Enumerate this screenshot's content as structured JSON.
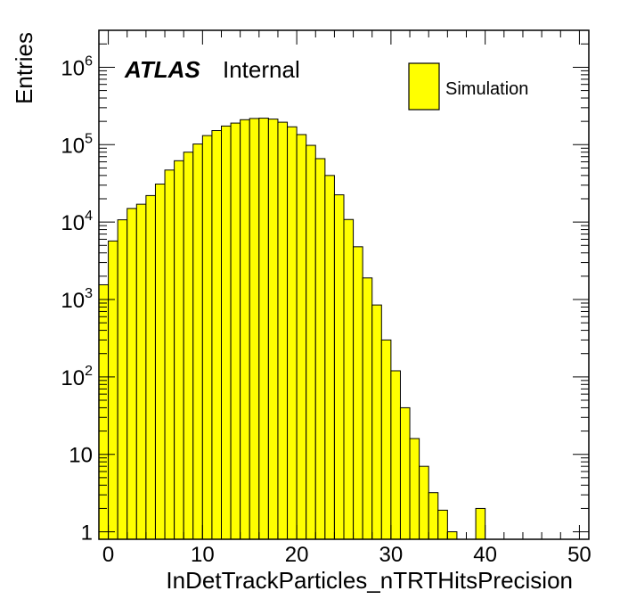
{
  "chart_data": {
    "type": "histogram",
    "x": [
      -1,
      0,
      1,
      2,
      3,
      4,
      5,
      6,
      7,
      8,
      9,
      10,
      11,
      12,
      13,
      14,
      15,
      16,
      17,
      18,
      19,
      20,
      21,
      22,
      23,
      24,
      25,
      26,
      27,
      28,
      29,
      30,
      31,
      32,
      33,
      34,
      35,
      36,
      37,
      38,
      39,
      40,
      41,
      42,
      43,
      44,
      45,
      46,
      47,
      48,
      49,
      50
    ],
    "series": [
      {
        "name": "Simulation",
        "values": [
          1550,
          5700,
          10700,
          15000,
          17000,
          22000,
          31000,
          47000,
          62000,
          80000,
          102000,
          131000,
          152000,
          174000,
          190000,
          210000,
          218000,
          220000,
          214000,
          195000,
          170000,
          135000,
          98000,
          66000,
          40000,
          22500,
          10800,
          4800,
          1900,
          850,
          300,
          120,
          40,
          16,
          7,
          3.2,
          1.9,
          1,
          0,
          0,
          2,
          0,
          0,
          0,
          0,
          0,
          0,
          0,
          0,
          0,
          0
        ],
        "color": "#ffff00"
      }
    ],
    "xlim": [
      -1,
      51
    ],
    "ylim": [
      0.8,
      3000000
    ],
    "yscale": "log",
    "xticks": [
      0,
      10,
      20,
      30,
      40,
      50
    ],
    "xtick_labels": [
      "0",
      "10",
      "20",
      "30",
      "40",
      "50"
    ],
    "yticks": [
      1,
      10,
      100,
      1000,
      10000,
      100000,
      1000000
    ],
    "ytick_labels": [
      {
        "base": "1",
        "exp": ""
      },
      {
        "base": "10",
        "exp": ""
      },
      {
        "base": "10",
        "exp": "2"
      },
      {
        "base": "10",
        "exp": "3"
      },
      {
        "base": "10",
        "exp": "4"
      },
      {
        "base": "10",
        "exp": "5"
      },
      {
        "base": "10",
        "exp": "6"
      }
    ],
    "xlabel": "InDetTrackParticles_nTRTHitsPrecision",
    "ylabel": "Entries",
    "legend_placement": "top-right",
    "grid": false
  },
  "annotations": {
    "experiment": "ATLAS",
    "status": "Internal"
  },
  "legend": {
    "label": "Simulation"
  }
}
